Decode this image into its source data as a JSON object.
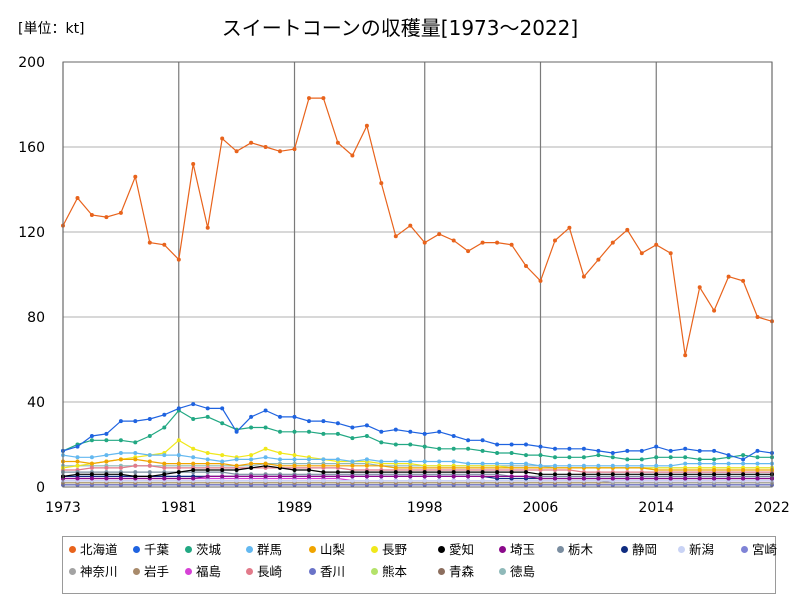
{
  "chart_data": {
    "type": "line",
    "title": "スイートコーンの収穫量[1973～2022]",
    "unit_label": "[単位：kt]",
    "xlabel": "",
    "ylabel": "",
    "x_ticks": [
      "1973",
      "1981",
      "1989",
      "1998",
      "2006",
      "2014",
      "2022"
    ],
    "y_ticks": [
      "0",
      "40",
      "80",
      "120",
      "160",
      "200"
    ],
    "ylim": [
      0,
      200
    ],
    "xlim": [
      1973,
      2022
    ],
    "grid": true,
    "legend_position": "bottom",
    "x": [
      1973,
      1974,
      1975,
      1976,
      1977,
      1978,
      1979,
      1980,
      1981,
      1982,
      1983,
      1984,
      1985,
      1986,
      1987,
      1988,
      1989,
      1990,
      1991,
      1992,
      1993,
      1994,
      1995,
      1996,
      1997,
      1998,
      1999,
      2000,
      2001,
      2002,
      2003,
      2004,
      2005,
      2006,
      2007,
      2008,
      2009,
      2010,
      2011,
      2012,
      2013,
      2014,
      2015,
      2016,
      2017,
      2018,
      2019,
      2020,
      2021,
      2022
    ],
    "series": [
      {
        "name": "北海道",
        "color": "#e8631c",
        "values": [
          123,
          136,
          128,
          127,
          129,
          146,
          115,
          114,
          107,
          152,
          122,
          164,
          158,
          162,
          160,
          158,
          159,
          183,
          183,
          162,
          156,
          170,
          143,
          118,
          123,
          115,
          119,
          116,
          111,
          115,
          115,
          114,
          104,
          97,
          116,
          122,
          99,
          107,
          115,
          121,
          110,
          114,
          110,
          62,
          94,
          83,
          99,
          97,
          80,
          78
        ]
      },
      {
        "name": "千葉",
        "color": "#1f63e0",
        "values": [
          17,
          19,
          24,
          25,
          31,
          31,
          32,
          34,
          37,
          39,
          37,
          37,
          26,
          33,
          36,
          33,
          33,
          31,
          31,
          30,
          28,
          29,
          26,
          27,
          26,
          25,
          26,
          24,
          22,
          22,
          20,
          20,
          20,
          19,
          18,
          18,
          18,
          17,
          16,
          17,
          17,
          19,
          17,
          18,
          17,
          17,
          15,
          13,
          17,
          16
        ]
      },
      {
        "name": "茨城",
        "color": "#22a883",
        "values": [
          17,
          20,
          22,
          22,
          22,
          21,
          24,
          28,
          36,
          32,
          33,
          30,
          27,
          28,
          28,
          26,
          26,
          26,
          25,
          25,
          23,
          24,
          21,
          20,
          20,
          19,
          18,
          18,
          18,
          17,
          16,
          16,
          15,
          15,
          14,
          14,
          14,
          15,
          14,
          13,
          13,
          14,
          14,
          14,
          13,
          13,
          14,
          15,
          14,
          14
        ]
      },
      {
        "name": "群馬",
        "color": "#63b8f0",
        "values": [
          15,
          14,
          14,
          15,
          16,
          16,
          15,
          15,
          15,
          14,
          13,
          12,
          13,
          13,
          14,
          13,
          13,
          13,
          13,
          13,
          12,
          13,
          12,
          12,
          12,
          12,
          12,
          12,
          11,
          11,
          11,
          11,
          11,
          10,
          10,
          10,
          10,
          10,
          10,
          10,
          10,
          10,
          10,
          11,
          11,
          11,
          11,
          11,
          11,
          11
        ]
      },
      {
        "name": "山梨",
        "color": "#f0a400",
        "values": [
          12,
          12,
          11,
          12,
          13,
          13,
          12,
          11,
          11,
          11,
          11,
          11,
          10,
          11,
          11,
          10,
          10,
          10,
          10,
          10,
          10,
          10,
          10,
          9,
          9,
          9,
          9,
          9,
          9,
          9,
          9,
          9,
          9,
          9,
          9,
          9,
          9,
          9,
          9,
          9,
          9,
          8,
          8,
          8,
          8,
          8,
          8,
          8,
          8,
          8
        ]
      },
      {
        "name": "長野",
        "color": "#f0e81c",
        "values": [
          9,
          10,
          11,
          12,
          13,
          14,
          15,
          16,
          22,
          18,
          16,
          15,
          14,
          15,
          18,
          16,
          15,
          14,
          13,
          12,
          12,
          12,
          11,
          11,
          11,
          10,
          10,
          10,
          10,
          10,
          10,
          9,
          9,
          9,
          9,
          9,
          9,
          9,
          9,
          9,
          9,
          9,
          9,
          9,
          9,
          9,
          9,
          9,
          9,
          9
        ]
      },
      {
        "name": "愛知",
        "color": "#000000",
        "values": [
          5,
          6,
          6,
          6,
          6,
          5,
          5,
          6,
          7,
          8,
          8,
          8,
          8,
          9,
          10,
          9,
          8,
          8,
          7,
          7,
          7,
          7,
          7,
          7,
          7,
          7,
          7,
          7,
          7,
          7,
          7,
          7,
          7,
          6,
          6,
          6,
          6,
          6,
          6,
          6,
          6,
          6,
          6,
          6,
          6,
          6,
          6,
          6,
          6,
          6
        ]
      },
      {
        "name": "埼玉",
        "color": "#8b0a8b",
        "values": [
          4,
          4,
          4,
          4,
          4,
          4,
          4,
          4,
          4,
          4,
          5,
          5,
          5,
          5,
          5,
          5,
          5,
          5,
          5,
          5,
          5,
          5,
          5,
          5,
          5,
          5,
          5,
          5,
          5,
          5,
          5,
          5,
          5,
          4,
          4,
          4,
          4,
          4,
          4,
          4,
          4,
          4,
          4,
          4,
          4,
          4,
          4,
          4,
          4,
          4
        ]
      },
      {
        "name": "栃木",
        "color": "#7a8da0",
        "values": [
          7,
          7,
          7,
          7,
          7,
          7,
          7,
          7,
          7,
          7,
          7,
          7,
          6,
          6,
          6,
          6,
          6,
          6,
          6,
          6,
          6,
          6,
          6,
          6,
          6,
          6,
          6,
          6,
          6,
          6,
          6,
          5,
          5,
          5,
          5,
          5,
          5,
          5,
          5,
          5,
          5,
          5,
          5,
          5,
          5,
          5,
          5,
          5,
          5,
          5
        ]
      },
      {
        "name": "静岡",
        "color": "#0f2c80",
        "values": [
          5,
          5,
          5,
          5,
          5,
          5,
          5,
          5,
          5,
          5,
          5,
          5,
          5,
          5,
          5,
          5,
          5,
          5,
          5,
          5,
          5,
          5,
          5,
          5,
          5,
          5,
          5,
          5,
          5,
          5,
          4,
          4,
          4,
          4,
          4,
          4,
          4,
          4,
          4,
          4,
          4,
          4,
          4,
          4,
          4,
          4,
          4,
          4,
          4,
          4
        ]
      },
      {
        "name": "新潟",
        "color": "#c9d3f5",
        "values": [
          3,
          3,
          3,
          3,
          3,
          3,
          3,
          3,
          3,
          3,
          3,
          3,
          3,
          3,
          3,
          3,
          3,
          3,
          3,
          3,
          3,
          3,
          3,
          3,
          3,
          3,
          3,
          3,
          3,
          3,
          3,
          3,
          3,
          3,
          3,
          3,
          3,
          3,
          3,
          3,
          3,
          3,
          3,
          3,
          3,
          3,
          3,
          3,
          3,
          3
        ]
      },
      {
        "name": "宮崎",
        "color": "#7f83d6",
        "values": [
          3,
          3,
          3,
          3,
          3,
          3,
          3,
          3,
          3,
          3,
          3,
          3,
          3,
          3,
          3,
          3,
          3,
          3,
          3,
          3,
          3,
          3,
          3,
          3,
          3,
          3,
          3,
          3,
          3,
          3,
          3,
          3,
          3,
          3,
          3,
          3,
          3,
          3,
          3,
          3,
          3,
          3,
          3,
          3,
          3,
          3,
          3,
          3,
          3,
          3
        ]
      },
      {
        "name": "神奈川",
        "color": "#a3a3a3",
        "values": [
          3,
          3,
          3,
          3,
          3,
          3,
          3,
          3,
          3,
          3,
          3,
          3,
          3,
          3,
          3,
          3,
          3,
          3,
          3,
          3,
          3,
          3,
          3,
          3,
          3,
          3,
          3,
          3,
          3,
          3,
          3,
          3,
          3,
          3,
          3,
          3,
          3,
          3,
          2,
          2,
          2,
          2,
          2,
          2,
          2,
          2,
          2,
          2,
          2,
          2
        ]
      },
      {
        "name": "岩手",
        "color": "#a88a6b",
        "values": [
          2,
          2,
          2,
          2,
          2,
          2,
          2,
          2,
          2,
          2,
          2,
          2,
          2,
          2,
          2,
          2,
          2,
          2,
          2,
          2,
          2,
          2,
          2,
          2,
          2,
          2,
          2,
          2,
          2,
          2,
          2,
          2,
          2,
          2,
          2,
          2,
          2,
          2,
          2,
          2,
          2,
          2,
          2,
          2,
          2,
          2,
          2,
          2,
          2,
          2
        ]
      },
      {
        "name": "福島",
        "color": "#d641d6",
        "values": [
          4,
          4,
          4,
          4,
          4,
          4,
          4,
          4,
          4,
          4,
          4,
          4,
          4,
          4,
          4,
          4,
          4,
          4,
          4,
          4,
          3,
          3,
          3,
          3,
          3,
          3,
          3,
          3,
          3,
          3,
          3,
          3,
          3,
          3,
          3,
          3,
          3,
          3,
          3,
          3,
          3,
          3,
          3,
          3,
          3,
          3,
          3,
          3,
          3,
          3
        ]
      },
      {
        "name": "長崎",
        "color": "#e27a8a",
        "values": [
          8,
          8,
          9,
          9,
          9,
          10,
          10,
          9,
          9,
          9,
          9,
          9,
          9,
          9,
          9,
          9,
          9,
          9,
          9,
          9,
          8,
          8,
          8,
          8,
          8,
          8,
          8,
          8,
          8,
          8,
          8,
          8,
          8,
          8,
          8,
          8,
          7,
          7,
          7,
          7,
          7,
          7,
          7,
          7,
          7,
          7,
          7,
          7,
          7,
          7
        ]
      },
      {
        "name": "香川",
        "color": "#6a73c8",
        "values": [
          1,
          1,
          1,
          1,
          1,
          1,
          1,
          1,
          1,
          1,
          1,
          1,
          1,
          1,
          1,
          1,
          1,
          1,
          1,
          1,
          1,
          1,
          1,
          1,
          1,
          1,
          1,
          1,
          1,
          1,
          1,
          1,
          1,
          1,
          1,
          1,
          1,
          1,
          1,
          1,
          1,
          1,
          1,
          1,
          1,
          1,
          1,
          1,
          1,
          1
        ]
      },
      {
        "name": "熊本",
        "color": "#b4e26a",
        "values": [
          2,
          2,
          2,
          2,
          2,
          2,
          2,
          2,
          2,
          2,
          2,
          2,
          2,
          2,
          2,
          2,
          2,
          2,
          2,
          2,
          2,
          2,
          2,
          2,
          2,
          2,
          2,
          2,
          2,
          2,
          2,
          2,
          2,
          2,
          2,
          2,
          2,
          2,
          2,
          2,
          2,
          2,
          2,
          2,
          2,
          2,
          2,
          2,
          2,
          2
        ]
      },
      {
        "name": "青森",
        "color": "#8c6e5e",
        "values": [
          1,
          1,
          1,
          1,
          1,
          1,
          1,
          1,
          1,
          1,
          1,
          1,
          1,
          1,
          1,
          1,
          1,
          1,
          1,
          1,
          1,
          1,
          1,
          1,
          1,
          1,
          1,
          1,
          1,
          1,
          1,
          1,
          1,
          1,
          1,
          1,
          1,
          1,
          1,
          1,
          1,
          1,
          1,
          1,
          1,
          1,
          1,
          1,
          1,
          1
        ]
      },
      {
        "name": "徳島",
        "color": "#8fb9b9",
        "values": [
          10,
          10,
          10,
          10,
          10,
          10,
          10,
          10,
          10,
          10,
          10,
          10,
          10,
          10,
          11,
          11,
          11,
          11,
          11,
          11,
          11,
          11,
          10,
          10,
          10,
          10,
          10,
          10,
          10,
          10,
          10,
          10,
          10,
          10,
          9,
          9,
          9,
          9,
          9,
          9,
          9,
          9,
          9,
          9,
          9,
          9,
          9,
          9,
          9,
          9
        ]
      }
    ]
  }
}
